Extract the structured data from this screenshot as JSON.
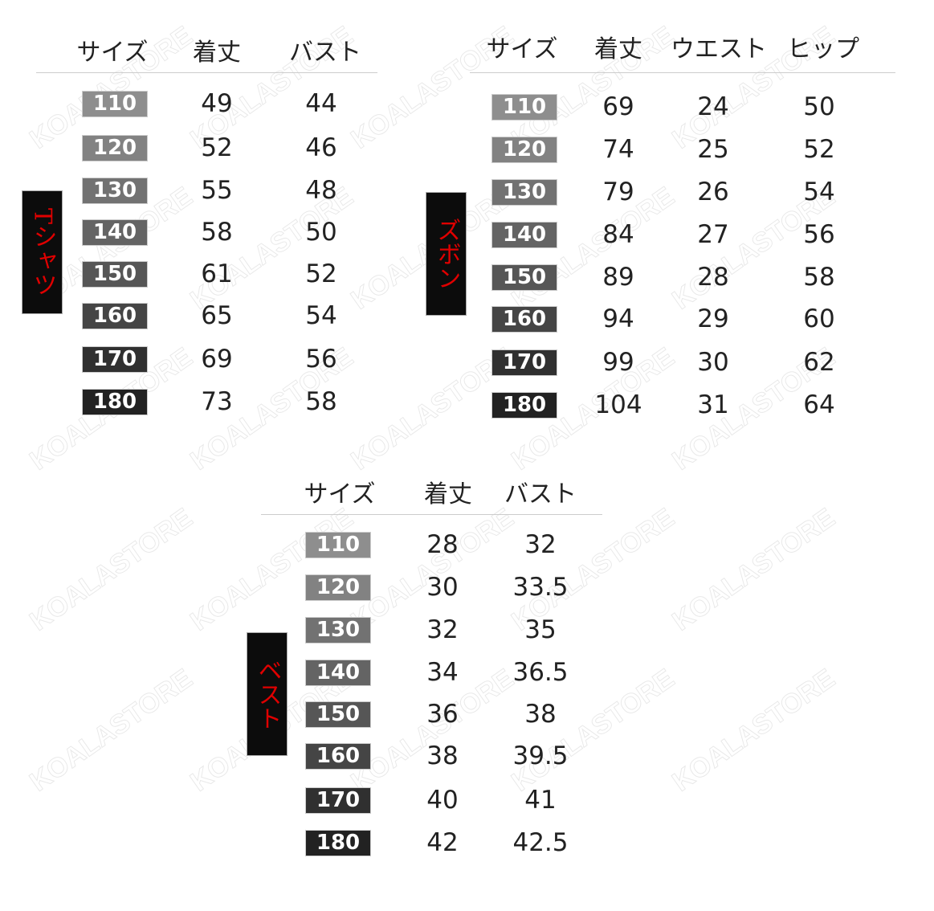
{
  "watermark": "KOALASTORE",
  "badge_colors": [
    "#8e8e8e",
    "#828282",
    "#727272",
    "#646464",
    "#565656",
    "#454545",
    "#303030",
    "#222222"
  ],
  "label_color": "#e00000",
  "tables": [
    {
      "label": "Tシャツ",
      "headers": [
        "サイズ",
        "着丈",
        "バスト"
      ],
      "rows": [
        [
          "110",
          "49",
          "44"
        ],
        [
          "120",
          "52",
          "46"
        ],
        [
          "130",
          "55",
          "48"
        ],
        [
          "140",
          "58",
          "50"
        ],
        [
          "150",
          "61",
          "52"
        ],
        [
          "160",
          "65",
          "54"
        ],
        [
          "170",
          "69",
          "56"
        ],
        [
          "180",
          "73",
          "58"
        ]
      ]
    },
    {
      "label": "ズボン",
      "headers": [
        "サイズ",
        "着丈",
        "ウエスト",
        "ヒップ"
      ],
      "rows": [
        [
          "110",
          "69",
          "24",
          "50"
        ],
        [
          "120",
          "74",
          "25",
          "52"
        ],
        [
          "130",
          "79",
          "26",
          "54"
        ],
        [
          "140",
          "84",
          "27",
          "56"
        ],
        [
          "150",
          "89",
          "28",
          "58"
        ],
        [
          "160",
          "94",
          "29",
          "60"
        ],
        [
          "170",
          "99",
          "30",
          "62"
        ],
        [
          "180",
          "104",
          "31",
          "64"
        ]
      ]
    },
    {
      "label": "ベスト",
      "headers": [
        "サイズ",
        "着丈",
        "バスト"
      ],
      "rows": [
        [
          "110",
          "28",
          "32"
        ],
        [
          "120",
          "30",
          "33.5"
        ],
        [
          "130",
          "32",
          "35"
        ],
        [
          "140",
          "34",
          "36.5"
        ],
        [
          "150",
          "36",
          "38"
        ],
        [
          "160",
          "38",
          "39.5"
        ],
        [
          "170",
          "40",
          "41"
        ],
        [
          "180",
          "42",
          "42.5"
        ]
      ]
    }
  ]
}
